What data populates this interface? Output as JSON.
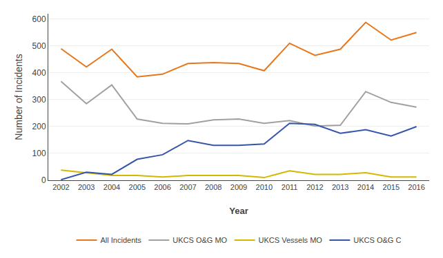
{
  "chart_data": {
    "type": "line",
    "x": [
      2002,
      2003,
      2004,
      2005,
      2006,
      2007,
      2008,
      2009,
      2010,
      2011,
      2012,
      2013,
      2014,
      2015,
      2016
    ],
    "series": [
      {
        "name": "All Incidents",
        "color": "#E8761A",
        "values": [
          490,
          422,
          488,
          385,
          395,
          435,
          438,
          435,
          408,
          510,
          465,
          488,
          588,
          522,
          550
        ]
      },
      {
        "name": "UKCS O&G MO",
        "color": "#A0A0A0",
        "values": [
          368,
          285,
          355,
          228,
          212,
          210,
          225,
          228,
          212,
          222,
          202,
          205,
          330,
          290,
          272
        ]
      },
      {
        "name": "UKCS Vessels MO",
        "color": "#D4B800",
        "values": [
          38,
          28,
          18,
          18,
          12,
          18,
          18,
          18,
          10,
          35,
          22,
          22,
          28,
          12,
          12
        ]
      },
      {
        "name": "UKCS O&G C",
        "color": "#3355AA",
        "values": [
          2,
          30,
          22,
          78,
          95,
          148,
          130,
          130,
          135,
          212,
          208,
          175,
          188,
          165,
          200
        ]
      }
    ],
    "xlabel": "Year",
    "ylabel": "Number of Incidents",
    "xlim": [
      2001.5,
      2016.5
    ],
    "xticks": [
      2002,
      2003,
      2004,
      2005,
      2006,
      2007,
      2008,
      2009,
      2010,
      2011,
      2012,
      2013,
      2014,
      2015,
      2016
    ],
    "ylim": [
      0,
      620
    ],
    "yticks": [
      0,
      100,
      200,
      300,
      400,
      500,
      600
    ],
    "grid": true,
    "legend": "bottom"
  }
}
